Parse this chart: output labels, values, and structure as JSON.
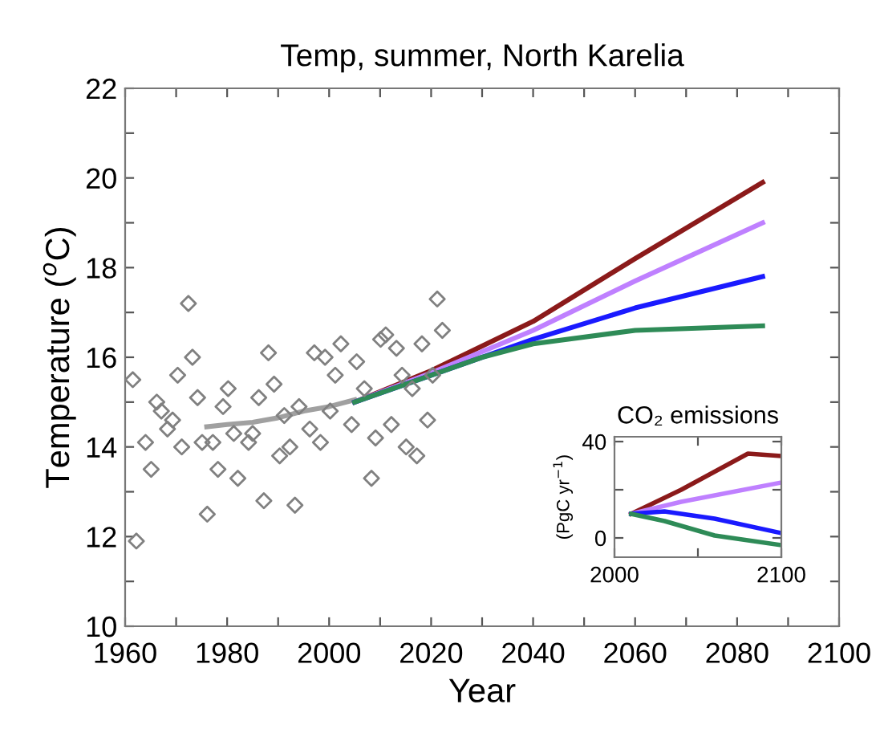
{
  "chart_data": [
    {
      "type": "line",
      "title": "Temp, summer, North Karelia",
      "xlabel": "Year",
      "ylabel": "Temperature ($^{o}$C)",
      "xlim": [
        1960,
        2100
      ],
      "xticks": [
        1960,
        {
          "value": 1970,
          "label": null
        },
        1980,
        {
          "value": 1990,
          "label": null
        },
        2000,
        {
          "value": 2010,
          "label": null
        },
        2020,
        {
          "value": 2030,
          "label": null
        },
        2040,
        {
          "value": 2050,
          "label": null
        },
        2060,
        {
          "value": 2070,
          "label": null
        },
        2080,
        {
          "value": 2090,
          "label": null
        },
        2100
      ],
      "ylim": [
        10,
        22
      ],
      "yticks": [
        10,
        {
          "value": 11,
          "label": null
        },
        12,
        {
          "value": 13,
          "label": null
        },
        14,
        {
          "value": 15,
          "label": null
        },
        16,
        {
          "value": 17,
          "label": null
        },
        18,
        {
          "value": 19,
          "label": null
        },
        20,
        {
          "value": 21,
          "label": null
        },
        22
      ],
      "series": [
        {
          "type": "scatter",
          "marker": "diamond",
          "color": "#808080",
          "x": [
            1961.5,
            1962.2,
            1964,
            1965.1,
            1966.2,
            1967.1,
            1968.3,
            1969.3,
            1970.3,
            1971.1,
            1972.4,
            1973.2,
            1974.2,
            1975.1,
            1976.1,
            1977.2,
            1978.2,
            1979.2,
            1980.2,
            1981.3,
            1982.1,
            1984.2,
            1985,
            1986.2,
            1987.2,
            1988.1,
            1989.2,
            1990.3,
            1991.2,
            1992.3,
            1993.3,
            1994.1,
            1996.2,
            1997.1,
            1998.3,
            1999.2,
            2000.2,
            2001.2,
            2002.3,
            2004.4,
            2005.4,
            2006.9,
            2008.3,
            2009.1,
            2010.1,
            2011.1,
            2012.2,
            2013.2,
            2014.3,
            2015.1,
            2016.3,
            2017.2,
            2018.2,
            2019.3,
            2020.3,
            2021.2,
            2022.2
          ],
          "values": [
            15.5,
            11.9,
            14.1,
            13.5,
            15.0,
            14.8,
            14.4,
            14.6,
            15.6,
            14.0,
            17.2,
            16.0,
            15.1,
            14.1,
            12.5,
            14.1,
            13.5,
            14.9,
            15.3,
            14.3,
            13.3,
            14.1,
            14.3,
            15.1,
            12.8,
            16.1,
            15.4,
            13.8,
            14.7,
            14.0,
            12.7,
            14.9,
            14.4,
            16.1,
            14.1,
            16.0,
            14.8,
            15.6,
            16.3,
            14.5,
            15.9,
            15.3,
            13.3,
            14.2,
            16.4,
            16.5,
            14.5,
            16.2,
            15.6,
            14.0,
            15.3,
            13.8,
            16.3,
            14.6,
            15.6,
            17.3,
            16.6
          ]
        },
        {
          "type": "line",
          "color": "#a0a0a0",
          "x": [
            1976,
            1980,
            1985,
            1990,
            1995,
            2000,
            2005
          ],
          "values": [
            14.45,
            14.5,
            14.55,
            14.65,
            14.8,
            14.9,
            15.05
          ]
        },
        {
          "type": "line",
          "color": "#8b1a1a",
          "x": [
            2005,
            2020,
            2040,
            2060,
            2085
          ],
          "values": [
            15.0,
            15.7,
            16.8,
            18.2,
            19.9
          ]
        },
        {
          "type": "line",
          "color": "#bf80ff",
          "x": [
            2005,
            2020,
            2040,
            2060,
            2085
          ],
          "values": [
            15.0,
            15.65,
            16.6,
            17.7,
            19.0
          ]
        },
        {
          "type": "line",
          "color": "#1a1aff",
          "x": [
            2005,
            2020,
            2040,
            2060,
            2085
          ],
          "values": [
            15.0,
            15.6,
            16.4,
            17.1,
            17.8
          ]
        },
        {
          "type": "line",
          "color": "#2e8b57",
          "x": [
            2005,
            2020,
            2030,
            2040,
            2060,
            2085
          ],
          "values": [
            15.0,
            15.6,
            16.0,
            16.3,
            16.6,
            16.7
          ]
        }
      ]
    },
    {
      "type": "line",
      "title": "CO₂ emissions",
      "ylabel": "(PgC yr$^{−1}$)",
      "xlim": [
        2000,
        2100
      ],
      "xticks": [
        2000,
        {
          "value": 2050,
          "label": null
        },
        2100
      ],
      "ylim": [
        -8,
        42
      ],
      "yticks": [
        0,
        {
          "value": 20,
          "label": null
        },
        40
      ],
      "series": [
        {
          "color": "#8b1a1a",
          "x": [
            2010,
            2040,
            2080,
            2100
          ],
          "values": [
            10,
            20,
            35,
            34
          ]
        },
        {
          "color": "#bf80ff",
          "x": [
            2010,
            2040,
            2100
          ],
          "values": [
            10,
            15,
            23
          ]
        },
        {
          "color": "#1a1aff",
          "x": [
            2010,
            2030,
            2060,
            2100
          ],
          "values": [
            10,
            11,
            8,
            2
          ]
        },
        {
          "color": "#2e8b57",
          "x": [
            2010,
            2030,
            2060,
            2100
          ],
          "values": [
            10,
            7,
            1,
            -3
          ]
        }
      ]
    }
  ]
}
